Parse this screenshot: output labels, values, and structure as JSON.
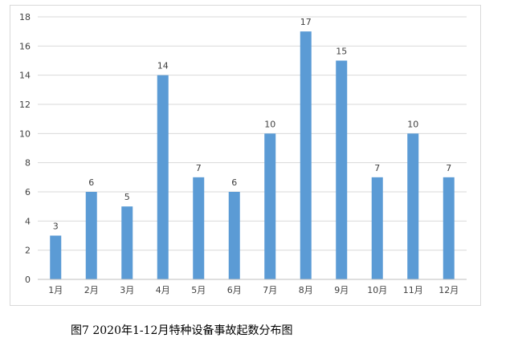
{
  "caption": "图7 2020年1-12月特种设备事故起数分布图",
  "colors": {
    "bar": "#5b9bd5",
    "grid": "#d9d9d9",
    "axis": "#bfbfbf",
    "text": "#404040"
  },
  "chart_data": {
    "type": "bar",
    "categories": [
      "1月",
      "2月",
      "3月",
      "4月",
      "5月",
      "6月",
      "7月",
      "8月",
      "9月",
      "10月",
      "11月",
      "12月"
    ],
    "values": [
      3,
      6,
      5,
      14,
      7,
      6,
      10,
      17,
      15,
      7,
      10,
      7
    ],
    "ylim": [
      0,
      18
    ],
    "yticks": [
      0,
      2,
      4,
      6,
      8,
      10,
      12,
      14,
      16,
      18
    ],
    "grid": true,
    "data_labels": true,
    "legend": "none"
  }
}
